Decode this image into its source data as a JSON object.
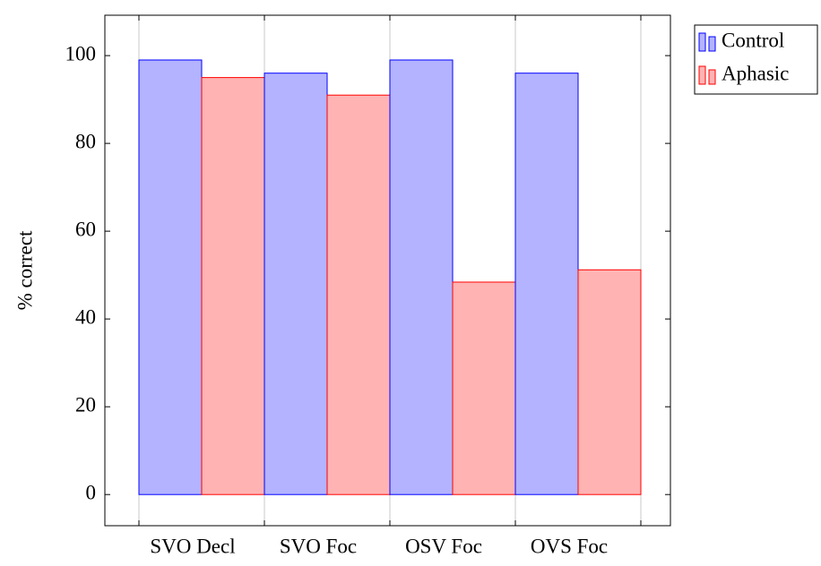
{
  "chart_data": {
    "type": "bar",
    "y_label": "% correct",
    "categories": [
      "SVO Decl",
      "SVO Foc",
      "OSV Foc",
      "OVS Foc"
    ],
    "series": [
      {
        "name": "Control",
        "color": "#b3b3ff",
        "edge": "#0000ff",
        "values": [
          99,
          96,
          99,
          96
        ]
      },
      {
        "name": "Aphasic",
        "color": "#ffb3b3",
        "edge": "#ff0000",
        "values": [
          95,
          91,
          48.4,
          51.2
        ]
      }
    ],
    "ylim": [
      -7.1,
      109.2
    ],
    "yticks": [
      0,
      20,
      40,
      60,
      80,
      100
    ],
    "xgrid": true,
    "legend": "outside top right"
  }
}
